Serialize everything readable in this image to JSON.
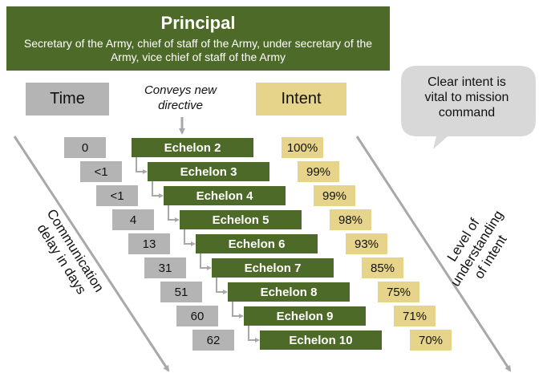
{
  "principal": {
    "title": "Principal",
    "subtitle": "Secretary of the Army, chief of staff of the Army, under secretary of the Army, vice chief of staff of the Army"
  },
  "headers": {
    "time": "Time",
    "conveys": "Conveys new directive",
    "intent": "Intent"
  },
  "callout": "Clear intent is vital to mission command",
  "side_labels": {
    "communication": "Communication delay in days",
    "understanding": "Level of understanding of intent"
  },
  "rows": [
    {
      "time": "0",
      "echelon": "Echelon 2",
      "intent": "100%"
    },
    {
      "time": "<1",
      "echelon": "Echelon 3",
      "intent": "99%"
    },
    {
      "time": "<1",
      "echelon": "Echelon 4",
      "intent": "99%"
    },
    {
      "time": "4",
      "echelon": "Echelon 5",
      "intent": "98%"
    },
    {
      "time": "13",
      "echelon": "Echelon 6",
      "intent": "93%"
    },
    {
      "time": "31",
      "echelon": "Echelon 7",
      "intent": "85%"
    },
    {
      "time": "51",
      "echelon": "Echelon 8",
      "intent": "75%"
    },
    {
      "time": "60",
      "echelon": "Echelon 9",
      "intent": "71%"
    },
    {
      "time": "62",
      "echelon": "Echelon 10",
      "intent": "70%"
    }
  ],
  "colors": {
    "green": "#4e6a28",
    "gray": "#b4b4b4",
    "gold": "#e6d48a",
    "callout": "#d8d8d8"
  }
}
